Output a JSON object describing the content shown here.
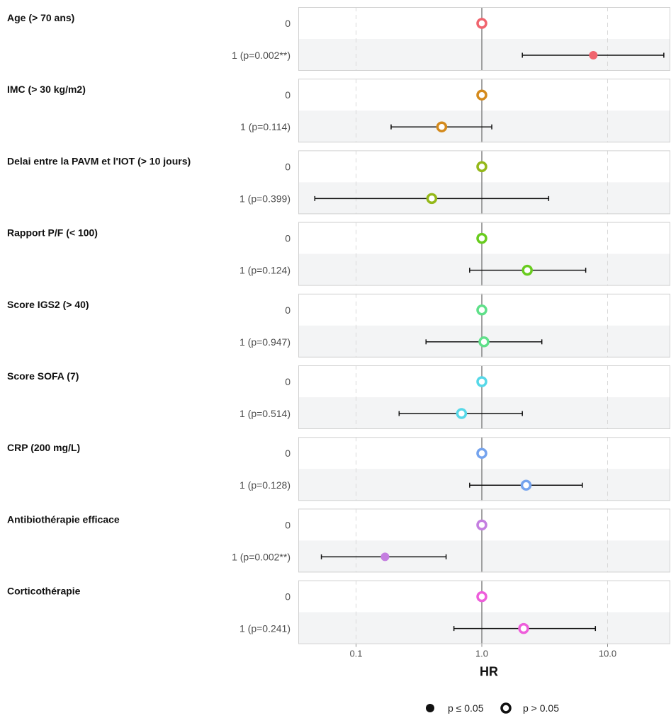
{
  "chart_data": {
    "type": "forest",
    "xlabel": "HR",
    "x_scale": "log",
    "xlim": [
      0.035,
      35
    ],
    "x_ticks": [
      {
        "value": 0.1,
        "label": "0.1"
      },
      {
        "value": 1.0,
        "label": "1.0"
      },
      {
        "value": 10.0,
        "label": "10.0"
      }
    ],
    "reference_line": 1.0,
    "variables": [
      {
        "name": "Age (> 70 ans)",
        "color": "#f0646e",
        "levels": [
          {
            "label": "0",
            "hr": 1.0,
            "significant": false
          },
          {
            "label": "1 (p=0.002**)",
            "hr": 7.7,
            "lo": 2.1,
            "hi": 28,
            "significant": true
          }
        ]
      },
      {
        "name": "IMC (> 30 kg/m2)",
        "color": "#d48a1c",
        "levels": [
          {
            "label": "0",
            "hr": 1.0,
            "significant": false
          },
          {
            "label": "1 (p=0.114)",
            "hr": 0.48,
            "lo": 0.19,
            "hi": 1.2,
            "significant": false
          }
        ]
      },
      {
        "name": "Delai entre la PAVM et l'IOT (> 10 jours)",
        "color": "#94b819",
        "levels": [
          {
            "label": "0",
            "hr": 1.0,
            "significant": false
          },
          {
            "label": "1 (p=0.399)",
            "hr": 0.4,
            "lo": 0.047,
            "hi": 3.4,
            "significant": false
          }
        ]
      },
      {
        "name": "Rapport P/F (< 100)",
        "color": "#68cc1e",
        "levels": [
          {
            "label": "0",
            "hr": 1.0,
            "significant": false
          },
          {
            "label": "1 (p=0.124)",
            "hr": 2.3,
            "lo": 0.8,
            "hi": 6.7,
            "significant": false
          }
        ]
      },
      {
        "name": "Score IGS2 (> 40)",
        "color": "#5fe089",
        "levels": [
          {
            "label": "0",
            "hr": 1.0,
            "significant": false
          },
          {
            "label": "1 (p=0.947)",
            "hr": 1.04,
            "lo": 0.36,
            "hi": 3.0,
            "significant": false
          }
        ]
      },
      {
        "name": "Score SOFA (7)",
        "color": "#56d8e8",
        "levels": [
          {
            "label": "0",
            "hr": 1.0,
            "significant": false
          },
          {
            "label": "1 (p=0.514)",
            "hr": 0.69,
            "lo": 0.22,
            "hi": 2.1,
            "significant": false
          }
        ]
      },
      {
        "name": "CRP (200 mg/L)",
        "color": "#74a3ee",
        "levels": [
          {
            "label": "0",
            "hr": 1.0,
            "significant": false
          },
          {
            "label": "1 (p=0.128)",
            "hr": 2.25,
            "lo": 0.8,
            "hi": 6.3,
            "significant": false
          }
        ]
      },
      {
        "name": "Antibiothérapie efficace",
        "color": "#c47ee0",
        "levels": [
          {
            "label": "0",
            "hr": 1.0,
            "significant": false
          },
          {
            "label": "1 (p=0.002**)",
            "hr": 0.17,
            "lo": 0.053,
            "hi": 0.52,
            "significant": true
          }
        ]
      },
      {
        "name": "Corticothérapie",
        "color": "#ee5edb",
        "levels": [
          {
            "label": "0",
            "hr": 1.0,
            "significant": false
          },
          {
            "label": "1 (p=0.241)",
            "hr": 2.15,
            "lo": 0.6,
            "hi": 8.0,
            "significant": false
          }
        ]
      }
    ],
    "legend": {
      "position": "bottom",
      "items": [
        {
          "label": "p ≤ 0.05",
          "marker": "filled"
        },
        {
          "label": "p > 0.05",
          "marker": "hollow"
        }
      ]
    }
  }
}
